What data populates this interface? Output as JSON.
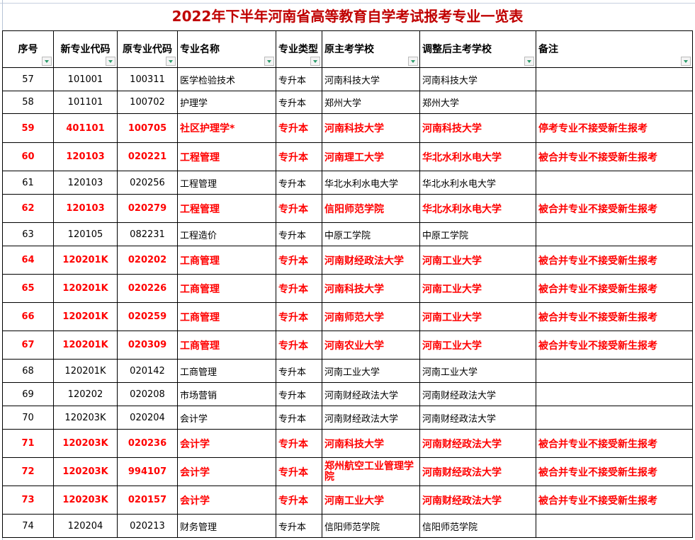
{
  "title": "2022年下半年河南省高等教育自学考试报考专业一览表",
  "columns": [
    "序号",
    "新专业代码",
    "原专业代码",
    "专业名称",
    "专业类型",
    "原主考学校",
    "调整后主考学校",
    "备注"
  ],
  "colors": {
    "highlight": "#ff0000",
    "title": "#c00000",
    "filter_arrow": "#2a9a6a"
  },
  "rows": [
    {
      "no": "57",
      "new_code": "101001",
      "old_code": "100311",
      "name": "医学检验技术",
      "type": "专升本",
      "orig_school": "河南科技大学",
      "new_school": "河南科技大学",
      "note": "",
      "highlight": false
    },
    {
      "no": "58",
      "new_code": "101101",
      "old_code": "100702",
      "name": "护理学",
      "type": "专升本",
      "orig_school": "郑州大学",
      "new_school": "郑州大学",
      "note": "",
      "highlight": false
    },
    {
      "no": "59",
      "new_code": "401101",
      "old_code": "100705",
      "name": "社区护理学*",
      "type": "专升本",
      "orig_school": "河南科技大学",
      "new_school": "河南科技大学",
      "note": "停考专业不接受新生报考",
      "highlight": true
    },
    {
      "no": "60",
      "new_code": "120103",
      "old_code": "020221",
      "name": "工程管理",
      "type": "专升本",
      "orig_school": "河南理工大学",
      "new_school": "华北水利水电大学",
      "note": "被合并专业不接受新生报考",
      "highlight": true
    },
    {
      "no": "61",
      "new_code": "120103",
      "old_code": "020256",
      "name": "工程管理",
      "type": "专升本",
      "orig_school": "华北水利水电大学",
      "new_school": "华北水利水电大学",
      "note": "",
      "highlight": false
    },
    {
      "no": "62",
      "new_code": "120103",
      "old_code": "020279",
      "name": "工程管理",
      "type": "专升本",
      "orig_school": "信阳师范学院",
      "new_school": "华北水利水电大学",
      "note": "被合并专业不接受新生报考",
      "highlight": true
    },
    {
      "no": "63",
      "new_code": "120105",
      "old_code": "082231",
      "name": "工程造价",
      "type": "专升本",
      "orig_school": "中原工学院",
      "new_school": "中原工学院",
      "note": "",
      "highlight": false
    },
    {
      "no": "64",
      "new_code": "120201K",
      "old_code": "020202",
      "name": "工商管理",
      "type": "专升本",
      "orig_school": "河南财经政法大学",
      "new_school": "河南工业大学",
      "note": "被合并专业不接受新生报考",
      "highlight": true
    },
    {
      "no": "65",
      "new_code": "120201K",
      "old_code": "020226",
      "name": "工商管理",
      "type": "专升本",
      "orig_school": "河南科技大学",
      "new_school": "河南工业大学",
      "note": "被合并专业不接受新生报考",
      "highlight": true
    },
    {
      "no": "66",
      "new_code": "120201K",
      "old_code": "020259",
      "name": "工商管理",
      "type": "专升本",
      "orig_school": "河南师范大学",
      "new_school": "河南工业大学",
      "note": "被合并专业不接受新生报考",
      "highlight": true
    },
    {
      "no": "67",
      "new_code": "120201K",
      "old_code": "020309",
      "name": "工商管理",
      "type": "专升本",
      "orig_school": "河南农业大学",
      "new_school": "河南工业大学",
      "note": "被合并专业不接受新生报考",
      "highlight": true
    },
    {
      "no": "68",
      "new_code": "120201K",
      "old_code": "020142",
      "name": "工商管理",
      "type": "专升本",
      "orig_school": "河南工业大学",
      "new_school": "河南工业大学",
      "note": "",
      "highlight": false
    },
    {
      "no": "69",
      "new_code": "120202",
      "old_code": "020208",
      "name": "市场营销",
      "type": "专升本",
      "orig_school": "河南财经政法大学",
      "new_school": "河南财经政法大学",
      "note": "",
      "highlight": false
    },
    {
      "no": "70",
      "new_code": "120203K",
      "old_code": "020204",
      "name": "会计学",
      "type": "专升本",
      "orig_school": "河南财经政法大学",
      "new_school": "河南财经政法大学",
      "note": "",
      "highlight": false
    },
    {
      "no": "71",
      "new_code": "120203K",
      "old_code": "020236",
      "name": "会计学",
      "type": "专升本",
      "orig_school": "河南科技大学",
      "new_school": "河南财经政法大学",
      "note": "被合并专业不接受新生报考",
      "highlight": true
    },
    {
      "no": "72",
      "new_code": "120203K",
      "old_code": "994107",
      "name": "会计学",
      "type": "专升本",
      "orig_school": "郑州航空工业管理学院",
      "new_school": "河南财经政法大学",
      "note": "被合并专业不接受新生报考",
      "highlight": true
    },
    {
      "no": "73",
      "new_code": "120203K",
      "old_code": "020157",
      "name": "会计学",
      "type": "专升本",
      "orig_school": "河南工业大学",
      "new_school": "河南财经政法大学",
      "note": "被合并专业不接受新生报考",
      "highlight": true
    },
    {
      "no": "74",
      "new_code": "120204",
      "old_code": "020213",
      "name": "财务管理",
      "type": "专升本",
      "orig_school": "信阳师范学院",
      "new_school": "信阳师范学院",
      "note": "",
      "highlight": false
    }
  ]
}
